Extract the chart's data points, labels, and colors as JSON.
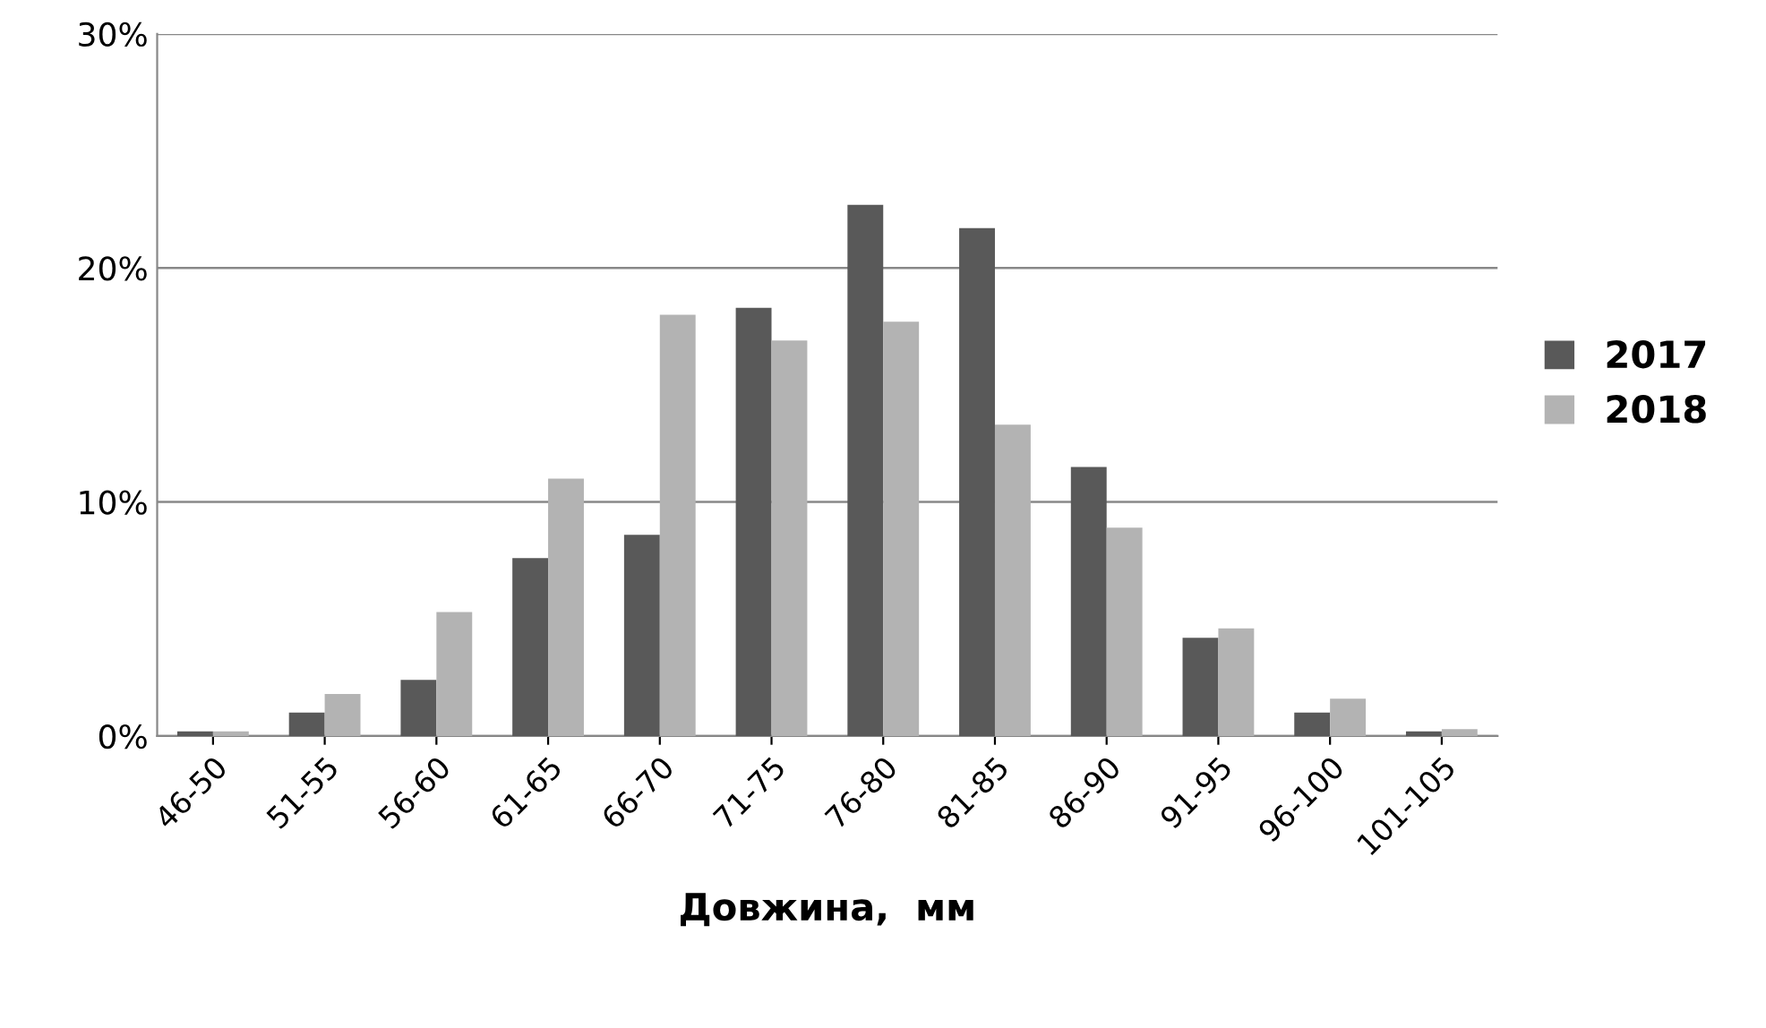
{
  "chart_data": {
    "type": "bar",
    "xlabel": "Довжина,  мм",
    "categories": [
      "46-50",
      "51-55",
      "56-60",
      "61-65",
      "66-70",
      "71-75",
      "76-80",
      "81-85",
      "86-90",
      "91-95",
      "96-100",
      "101-105"
    ],
    "series": [
      {
        "name": "2017",
        "color": "#595959",
        "values": [
          0.2,
          1.0,
          2.4,
          7.6,
          8.6,
          18.3,
          22.7,
          21.7,
          11.5,
          4.2,
          1.0,
          0.2
        ]
      },
      {
        "name": "2018",
        "color": "#b3b3b3",
        "values": [
          0.2,
          1.8,
          5.3,
          11.0,
          18.0,
          16.9,
          17.7,
          13.3,
          8.9,
          4.6,
          1.6,
          0.3
        ]
      }
    ],
    "ylim": [
      0,
      30
    ],
    "yticks": [
      {
        "value": 0,
        "label": "0%"
      },
      {
        "value": 10,
        "label": "10%"
      },
      {
        "value": 20,
        "label": "20%"
      },
      {
        "value": 30,
        "label": "30%"
      }
    ],
    "grid": "y",
    "legend": "right"
  }
}
